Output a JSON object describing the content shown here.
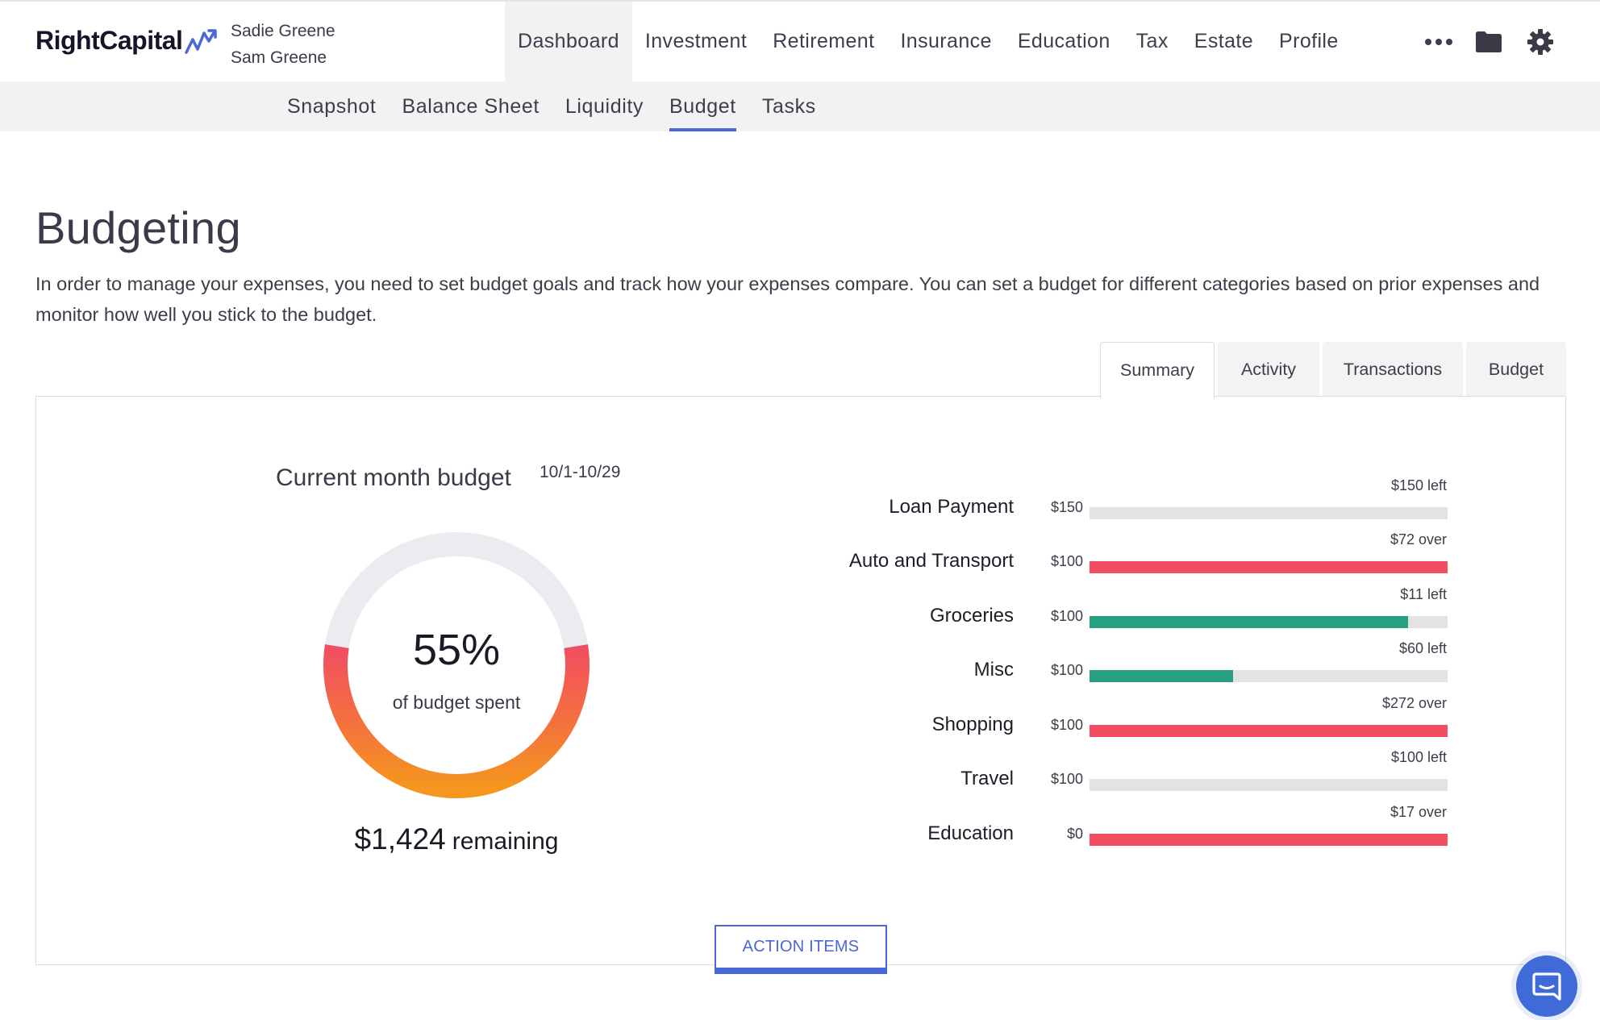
{
  "brand": {
    "name": "RightCapital"
  },
  "clients": [
    "Sadie Greene",
    "Sam Greene"
  ],
  "main_nav": [
    "Dashboard",
    "Investment",
    "Retirement",
    "Insurance",
    "Education",
    "Tax",
    "Estate",
    "Profile"
  ],
  "main_nav_active": "Dashboard",
  "header_icons": [
    "more-icon",
    "folder-icon",
    "gear-icon"
  ],
  "sub_nav": [
    "Snapshot",
    "Balance Sheet",
    "Liquidity",
    "Budget",
    "Tasks"
  ],
  "sub_nav_active": "Budget",
  "page": {
    "title": "Budgeting",
    "description": "In order to manage your expenses, you need to set budget goals and track how your expenses compare. You can set a budget for different categories based on prior expenses and monitor how well you stick to the budget."
  },
  "tabs": [
    "Summary",
    "Activity",
    "Transactions",
    "Budget"
  ],
  "tabs_active": "Summary",
  "summary": {
    "title": "Current month budget",
    "date_range": "10/1-10/29",
    "percent_spent": "55%",
    "percent_spent_value": 0.55,
    "percent_label": "of budget spent",
    "remaining_amount": "$1,424",
    "remaining_label": "remaining"
  },
  "categories": [
    {
      "name": "Loan Payment",
      "budget": "$150",
      "note": "$150 left",
      "spent_fraction": 0,
      "status": "left"
    },
    {
      "name": "Auto and Transport",
      "budget": "$100",
      "note": "$72 over",
      "spent_fraction": 1,
      "status": "over"
    },
    {
      "name": "Groceries",
      "budget": "$100",
      "note": "$11 left",
      "spent_fraction": 0.89,
      "status": "left"
    },
    {
      "name": "Misc",
      "budget": "$100",
      "note": "$60 left",
      "spent_fraction": 0.4,
      "status": "left"
    },
    {
      "name": "Shopping",
      "budget": "$100",
      "note": "$272 over",
      "spent_fraction": 1,
      "status": "over"
    },
    {
      "name": "Travel",
      "budget": "$100",
      "note": "$100 left",
      "spent_fraction": 0,
      "status": "left"
    },
    {
      "name": "Education",
      "budget": "$0",
      "note": "$17 over",
      "spent_fraction": 1,
      "status": "over"
    }
  ],
  "colors": {
    "accent": "#4a67d6",
    "over": "#f24d63",
    "under": "#27a082",
    "track": "#e3e3e3"
  },
  "action_button": "ACTION ITEMS",
  "chat_icon": "chat-icon"
}
